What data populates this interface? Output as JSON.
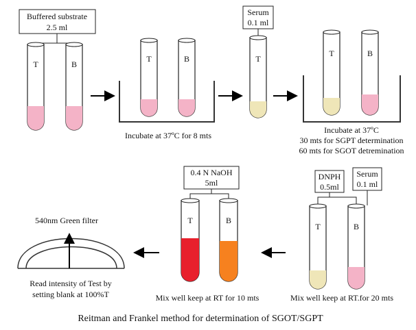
{
  "colors": {
    "pink": "#f4b3c7",
    "serum": "#efe6b8",
    "red": "#e8202c",
    "orange": "#f6811f",
    "tube_outline": "#222222",
    "beaker": "#333333"
  },
  "step1": {
    "label_line1": "Buffered substrate",
    "label_line2": "2.5 ml",
    "tube_test": "T",
    "tube_blank": "B"
  },
  "step2": {
    "caption": "Incubate at 37ºC for 8 mts",
    "tube_test": "T",
    "tube_blank": "B"
  },
  "step3": {
    "label_line1": "Serum",
    "label_line2": "0.1 ml",
    "tube_test": "T"
  },
  "step4": {
    "caption_line1": "Incubate at 37ºC",
    "caption_line2": "30 mts for  SGPT determination",
    "caption_line3": "60 mts for  SGOT detremination",
    "tube_test": "T",
    "tube_blank": "B"
  },
  "step5": {
    "dnph_line1": "DNPH",
    "dnph_line2": "0.5ml",
    "serum_line1": "Serum",
    "serum_line2": "0.1 ml",
    "caption": "Mix well keep at RT.for 20 mts",
    "tube_test": "T",
    "tube_blank": "B"
  },
  "step6": {
    "label_line1": "0.4 N NaOH",
    "label_line2": "5ml",
    "caption": "Mix well keep at RT for 10 mts",
    "tube_test": "T",
    "tube_blank": "B"
  },
  "step7": {
    "filter_label": "540nm Green filter",
    "caption_line1": "Read intensity of Test by",
    "caption_line2": "setting blank at 100%T"
  },
  "footer": {
    "title": "Reitman and Frankel method for determination of SGOT/SGPT"
  }
}
